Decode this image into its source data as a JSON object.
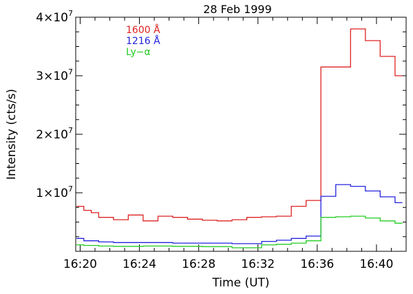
{
  "chart_data": {
    "type": "line",
    "step": true,
    "title": "28 Feb 1999",
    "xlabel": "Time (UT)",
    "ylabel": "Intensity (cts/s)",
    "xlim": [
      "16:19.7",
      "16:42.0"
    ],
    "ylim": [
      0,
      40000000
    ],
    "x_ticks": [
      "16:20",
      "16:24",
      "16:28",
      "16:32",
      "16:36",
      "16:40"
    ],
    "y_ticks": [
      {
        "mantissa": "1",
        "times": "×10",
        "exp": "7",
        "value": 10000000
      },
      {
        "mantissa": "2",
        "times": "×10",
        "exp": "7",
        "value": 20000000
      },
      {
        "mantissa": "3",
        "times": "×10",
        "exp": "7",
        "value": 30000000
      },
      {
        "mantissa": "4",
        "times": "×10",
        "exp": "7",
        "value": 40000000
      }
    ],
    "grid": false,
    "legend_position": "top-left",
    "legend": [
      {
        "label": "1600 Å",
        "color": "#dd2222"
      },
      {
        "label": "1216 Å",
        "color": "#2222dd"
      },
      {
        "label": "Ly−α",
        "color": "#22cc22"
      }
    ],
    "series": [
      {
        "name": "1600 Å",
        "color": "#dd2222",
        "x": [
          "16:19.75",
          "16:20.25",
          "16:20.75",
          "16:21.25",
          "16:22.25",
          "16:23.25",
          "16:24.25",
          "16:25.25",
          "16:26.25",
          "16:27.25",
          "16:28.25",
          "16:29.25",
          "16:30.25",
          "16:31.25",
          "16:32.25",
          "16:33.25",
          "16:34.25",
          "16:35.25",
          "16:36.25",
          "16:37.25",
          "16:38.25",
          "16:39.25",
          "16:40.25",
          "16:41.25"
        ],
        "values": [
          7700000,
          7000000,
          6600000,
          5800000,
          5400000,
          6200000,
          5200000,
          6000000,
          5800000,
          5500000,
          5300000,
          5200000,
          5400000,
          5800000,
          5900000,
          6000000,
          7700000,
          8700000,
          31500000,
          31500000,
          38000000,
          36000000,
          33300000,
          30000000
        ]
      },
      {
        "name": "1216 Å",
        "color": "#2222dd",
        "x": [
          "16:19.75",
          "16:20.25",
          "16:21.25",
          "16:22.25",
          "16:24.25",
          "16:26.25",
          "16:28.25",
          "16:30.25",
          "16:32.25",
          "16:33.25",
          "16:34.25",
          "16:35.25",
          "16:36.25",
          "16:37.25",
          "16:38.25",
          "16:39.25",
          "16:40.25",
          "16:41.25"
        ],
        "values": [
          2200000,
          1800000,
          1600000,
          1500000,
          1500000,
          1400000,
          1400000,
          1300000,
          1700000,
          1900000,
          2200000,
          2600000,
          9400000,
          11400000,
          11100000,
          10300000,
          9300000,
          8300000
        ]
      },
      {
        "name": "Ly−α",
        "color": "#22cc22",
        "x": [
          "16:19.75",
          "16:20.25",
          "16:21.25",
          "16:22.25",
          "16:24.25",
          "16:26.25",
          "16:28.25",
          "16:30.25",
          "16:32.25",
          "16:33.25",
          "16:34.25",
          "16:35.25",
          "16:36.25",
          "16:37.25",
          "16:38.25",
          "16:39.25",
          "16:40.25",
          "16:41.25"
        ],
        "values": [
          1100000,
          1000000,
          900000,
          850000,
          900000,
          850000,
          800000,
          600000,
          1100000,
          1200000,
          1400000,
          1800000,
          5800000,
          5900000,
          6000000,
          5700000,
          5200000,
          4800000
        ]
      }
    ]
  }
}
